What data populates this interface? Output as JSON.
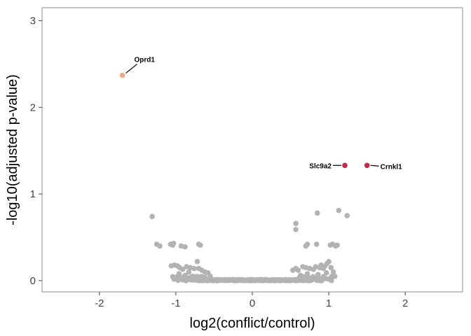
{
  "chart_data": {
    "type": "scatter",
    "title": "",
    "xlabel": "log2(conflict/control)",
    "ylabel": "-log10(adjusted p-value)",
    "xlim": [
      -2.75,
      2.75
    ],
    "ylim": [
      -0.13,
      3.15
    ],
    "x_ticks": [
      -2,
      -1,
      0,
      1,
      2
    ],
    "x_tick_labels": [
      "-2",
      "-1",
      "0",
      "1",
      "2"
    ],
    "y_ticks": [
      0,
      1,
      2,
      3
    ],
    "y_tick_labels": [
      "0",
      "1",
      "2",
      "3"
    ],
    "grid": false,
    "colors": {
      "not_significant": "#b3b3b3",
      "significant_down": "#f4a582",
      "significant_up": "#ca2a4a",
      "panel_border": "#8c8c8c",
      "tick": "#444444"
    },
    "highlighted": [
      {
        "label": "Oprd1",
        "x": -1.7,
        "y": 2.37,
        "color": "#f4a582",
        "label_side": "above-right"
      },
      {
        "label": "Slc9a2",
        "x": 1.21,
        "y": 1.33,
        "color": "#ca2a4a",
        "label_side": "left"
      },
      {
        "label": "Crnkl1",
        "x": 1.5,
        "y": 1.33,
        "color": "#ca2a4a",
        "label_side": "right"
      }
    ],
    "points": [
      [
        -1.31,
        0.74
      ],
      [
        1.13,
        0.81
      ],
      [
        1.24,
        0.75
      ],
      [
        0.85,
        0.78
      ],
      [
        0.57,
        0.66
      ],
      [
        0.57,
        0.59
      ],
      [
        -1.25,
        0.42
      ],
      [
        -1.21,
        0.4
      ],
      [
        -1.07,
        0.42
      ],
      [
        -1.04,
        0.41
      ],
      [
        -1.03,
        0.43
      ],
      [
        -0.93,
        0.4
      ],
      [
        -0.88,
        0.39
      ],
      [
        -0.7,
        0.42
      ],
      [
        -0.68,
        0.41
      ],
      [
        0.7,
        0.4
      ],
      [
        0.72,
        0.42
      ],
      [
        0.84,
        0.42
      ],
      [
        1.02,
        0.41
      ],
      [
        1.05,
        0.42
      ],
      [
        1.09,
        0.4
      ],
      [
        1.11,
        0.41
      ],
      [
        -1.06,
        0.17
      ],
      [
        -1.02,
        0.18
      ],
      [
        -0.98,
        0.17
      ],
      [
        -0.95,
        0.15
      ],
      [
        -0.91,
        0.13
      ],
      [
        -0.86,
        0.16
      ],
      [
        -0.81,
        0.15
      ],
      [
        -0.76,
        0.14
      ],
      [
        -0.72,
        0.22
      ],
      [
        -0.7,
        0.14
      ],
      [
        -0.66,
        0.12
      ],
      [
        -0.62,
        0.1
      ],
      [
        -0.58,
        0.09
      ],
      [
        -0.55,
        0.05
      ],
      [
        -0.96,
        0.08
      ],
      [
        -0.88,
        0.06
      ],
      [
        -0.83,
        0.1
      ],
      [
        -0.78,
        0.05
      ],
      [
        0.53,
        0.12
      ],
      [
        0.57,
        0.14
      ],
      [
        0.6,
        0.12
      ],
      [
        0.66,
        0.16
      ],
      [
        0.7,
        0.15
      ],
      [
        0.75,
        0.14
      ],
      [
        0.8,
        0.13
      ],
      [
        0.83,
        0.16
      ],
      [
        0.88,
        0.15
      ],
      [
        0.9,
        0.18
      ],
      [
        0.93,
        0.14
      ],
      [
        0.95,
        0.17
      ],
      [
        0.98,
        0.2
      ],
      [
        1.0,
        0.22
      ],
      [
        1.03,
        0.15
      ],
      [
        1.06,
        0.1
      ],
      [
        1.08,
        0.05
      ],
      [
        0.63,
        0.06
      ],
      [
        0.72,
        0.08
      ],
      [
        0.86,
        0.07
      ],
      [
        0.97,
        0.09
      ]
    ]
  }
}
